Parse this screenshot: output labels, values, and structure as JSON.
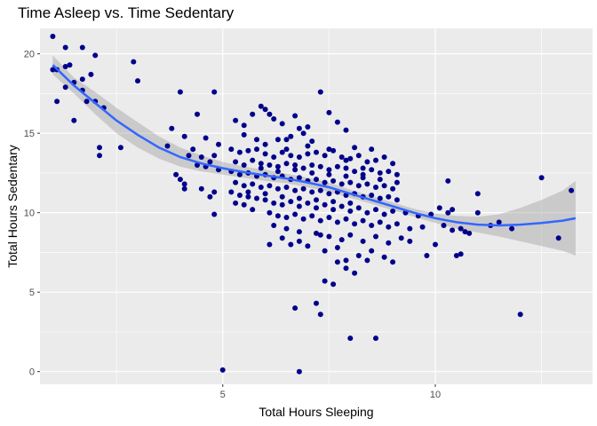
{
  "chart_data": {
    "type": "scatter",
    "title": "Time Asleep vs. Time Sedentary",
    "xlabel": "Total Hours Sleeping",
    "ylabel": "Total Hours Sedentary",
    "xlim": [
      0.7,
      13.7
    ],
    "ylim": [
      -0.8,
      21.6
    ],
    "xticks": [
      5,
      10
    ],
    "yticks": [
      0,
      5,
      10,
      15,
      20
    ],
    "grid": true,
    "legend": "none",
    "colors": {
      "panel": "#ebebeb",
      "grid": "#ffffff",
      "points": "#00008b",
      "smooth_line": "#3366ff",
      "ribbon": "#bfbfbf"
    },
    "smooth": {
      "method": "loess",
      "x": [
        1.0,
        1.5,
        2.0,
        2.5,
        3.0,
        3.5,
        4.0,
        4.5,
        5.0,
        5.5,
        6.0,
        6.5,
        7.0,
        7.5,
        8.0,
        8.5,
        9.0,
        9.5,
        10.0,
        10.5,
        11.0,
        11.5,
        12.0,
        12.5,
        13.0,
        13.3
      ],
      "y": [
        19.3,
        18.0,
        16.9,
        15.8,
        14.9,
        14.1,
        13.5,
        13.1,
        12.8,
        12.55,
        12.35,
        12.15,
        11.9,
        11.6,
        11.2,
        10.8,
        10.4,
        10.0,
        9.65,
        9.4,
        9.25,
        9.2,
        9.25,
        9.35,
        9.5,
        9.65
      ],
      "lower": [
        18.7,
        17.5,
        16.2,
        15.0,
        14.1,
        13.4,
        12.9,
        12.6,
        12.4,
        12.2,
        12.0,
        11.85,
        11.6,
        11.3,
        10.95,
        10.55,
        10.15,
        9.75,
        9.35,
        9.0,
        8.75,
        8.5,
        8.2,
        7.9,
        7.6,
        7.3
      ],
      "upper": [
        19.9,
        18.5,
        17.6,
        16.6,
        15.7,
        14.8,
        14.1,
        13.6,
        13.2,
        12.9,
        12.7,
        12.45,
        12.2,
        11.9,
        11.45,
        11.05,
        10.65,
        10.25,
        9.95,
        9.8,
        9.75,
        9.9,
        10.3,
        10.8,
        11.4,
        12.0
      ]
    },
    "points": [
      [
        1.0,
        21.1
      ],
      [
        1.3,
        20.4
      ],
      [
        1.7,
        20.4
      ],
      [
        2.0,
        19.9
      ],
      [
        1.1,
        19.0
      ],
      [
        1.4,
        19.3
      ],
      [
        1.3,
        19.2
      ],
      [
        1.0,
        19.0
      ],
      [
        1.5,
        18.2
      ],
      [
        1.7,
        18.4
      ],
      [
        1.9,
        18.7
      ],
      [
        1.7,
        17.7
      ],
      [
        1.3,
        17.9
      ],
      [
        1.1,
        17.0
      ],
      [
        1.8,
        17.0
      ],
      [
        2.0,
        17.0
      ],
      [
        2.2,
        16.6
      ],
      [
        1.5,
        15.8
      ],
      [
        2.1,
        14.1
      ],
      [
        2.1,
        13.6
      ],
      [
        2.6,
        14.1
      ],
      [
        2.9,
        19.5
      ],
      [
        3.0,
        18.3
      ],
      [
        4.0,
        17.6
      ],
      [
        4.8,
        17.6
      ],
      [
        4.4,
        16.2
      ],
      [
        3.8,
        15.3
      ],
      [
        4.1,
        14.8
      ],
      [
        4.6,
        14.7
      ],
      [
        4.9,
        14.3
      ],
      [
        3.7,
        14.2
      ],
      [
        4.3,
        14.0
      ],
      [
        4.2,
        13.6
      ],
      [
        4.5,
        13.5
      ],
      [
        4.8,
        13.6
      ],
      [
        4.7,
        13.2
      ],
      [
        4.4,
        13.0
      ],
      [
        4.6,
        12.9
      ],
      [
        4.9,
        12.7
      ],
      [
        3.9,
        12.4
      ],
      [
        4.0,
        12.1
      ],
      [
        4.1,
        11.8
      ],
      [
        4.1,
        11.5
      ],
      [
        4.5,
        11.5
      ],
      [
        4.8,
        11.3
      ],
      [
        4.7,
        11.0
      ],
      [
        4.8,
        9.9
      ],
      [
        5.0,
        0.1
      ],
      [
        5.3,
        15.8
      ],
      [
        5.5,
        15.5
      ],
      [
        5.7,
        16.2
      ],
      [
        5.9,
        16.7
      ],
      [
        6.0,
        16.5
      ],
      [
        6.1,
        16.2
      ],
      [
        6.2,
        15.9
      ],
      [
        5.5,
        14.9
      ],
      [
        5.8,
        14.6
      ],
      [
        6.0,
        14.3
      ],
      [
        6.3,
        14.6
      ],
      [
        6.5,
        14.6
      ],
      [
        6.6,
        14.8
      ],
      [
        6.8,
        15.3
      ],
      [
        7.0,
        15.4
      ],
      [
        6.9,
        15.0
      ],
      [
        7.1,
        14.5
      ],
      [
        7.3,
        17.6
      ],
      [
        7.5,
        16.3
      ],
      [
        7.7,
        15.7
      ],
      [
        7.9,
        15.2
      ],
      [
        6.7,
        16.1
      ],
      [
        6.4,
        15.6
      ],
      [
        5.2,
        14.0
      ],
      [
        5.4,
        13.8
      ],
      [
        5.6,
        13.9
      ],
      [
        5.8,
        14.0
      ],
      [
        6.0,
        13.7
      ],
      [
        6.2,
        13.5
      ],
      [
        6.4,
        13.8
      ],
      [
        6.6,
        13.6
      ],
      [
        6.8,
        13.5
      ],
      [
        7.0,
        13.7
      ],
      [
        7.2,
        13.8
      ],
      [
        7.4,
        13.6
      ],
      [
        7.6,
        13.9
      ],
      [
        7.8,
        13.5
      ],
      [
        8.0,
        13.4
      ],
      [
        8.2,
        13.6
      ],
      [
        8.4,
        13.2
      ],
      [
        8.6,
        13.3
      ],
      [
        8.8,
        13.5
      ],
      [
        9.0,
        13.1
      ],
      [
        5.3,
        13.2
      ],
      [
        5.5,
        13.0
      ],
      [
        5.7,
        13.3
      ],
      [
        5.9,
        13.1
      ],
      [
        6.1,
        13.0
      ],
      [
        6.3,
        12.9
      ],
      [
        6.5,
        13.1
      ],
      [
        6.7,
        13.0
      ],
      [
        6.9,
        12.8
      ],
      [
        7.1,
        13.0
      ],
      [
        7.3,
        12.9
      ],
      [
        7.5,
        12.7
      ],
      [
        7.7,
        12.9
      ],
      [
        7.9,
        12.8
      ],
      [
        8.1,
        12.6
      ],
      [
        8.3,
        12.8
      ],
      [
        8.5,
        12.7
      ],
      [
        8.7,
        12.5
      ],
      [
        8.9,
        12.6
      ],
      [
        9.1,
        12.4
      ],
      [
        5.2,
        12.6
      ],
      [
        5.4,
        12.4
      ],
      [
        5.6,
        12.5
      ],
      [
        5.8,
        12.3
      ],
      [
        6.0,
        12.4
      ],
      [
        6.2,
        12.2
      ],
      [
        6.4,
        12.3
      ],
      [
        6.6,
        12.1
      ],
      [
        6.8,
        12.2
      ],
      [
        7.0,
        12.0
      ],
      [
        7.2,
        12.1
      ],
      [
        7.4,
        11.9
      ],
      [
        7.6,
        12.0
      ],
      [
        7.8,
        11.8
      ],
      [
        8.0,
        11.9
      ],
      [
        8.2,
        11.7
      ],
      [
        8.4,
        11.8
      ],
      [
        8.6,
        11.6
      ],
      [
        8.8,
        11.7
      ],
      [
        9.0,
        11.5
      ],
      [
        5.3,
        11.9
      ],
      [
        5.5,
        11.7
      ],
      [
        5.7,
        11.8
      ],
      [
        5.9,
        11.6
      ],
      [
        6.1,
        11.7
      ],
      [
        6.3,
        11.5
      ],
      [
        6.5,
        11.6
      ],
      [
        6.7,
        11.4
      ],
      [
        6.9,
        11.5
      ],
      [
        7.1,
        11.3
      ],
      [
        7.3,
        11.4
      ],
      [
        7.5,
        11.2
      ],
      [
        7.7,
        11.3
      ],
      [
        7.9,
        11.1
      ],
      [
        8.1,
        11.2
      ],
      [
        8.3,
        11.0
      ],
      [
        8.5,
        11.1
      ],
      [
        8.7,
        10.9
      ],
      [
        8.9,
        11.0
      ],
      [
        9.1,
        10.8
      ],
      [
        5.2,
        11.3
      ],
      [
        5.4,
        11.1
      ],
      [
        5.6,
        11.0
      ],
      [
        5.8,
        10.9
      ],
      [
        6.0,
        10.8
      ],
      [
        6.2,
        10.6
      ],
      [
        6.4,
        10.5
      ],
      [
        6.6,
        10.7
      ],
      [
        6.8,
        10.4
      ],
      [
        7.0,
        10.6
      ],
      [
        7.2,
        10.3
      ],
      [
        7.4,
        10.5
      ],
      [
        7.6,
        10.2
      ],
      [
        7.8,
        10.4
      ],
      [
        8.0,
        10.1
      ],
      [
        8.2,
        10.3
      ],
      [
        8.4,
        10.0
      ],
      [
        8.6,
        10.2
      ],
      [
        8.8,
        9.9
      ],
      [
        9.0,
        10.1
      ],
      [
        9.3,
        10.0
      ],
      [
        9.6,
        9.8
      ],
      [
        9.9,
        9.9
      ],
      [
        10.1,
        10.3
      ],
      [
        10.3,
        10.0
      ],
      [
        5.3,
        10.6
      ],
      [
        5.5,
        10.5
      ],
      [
        5.7,
        10.2
      ],
      [
        6.1,
        10.0
      ],
      [
        6.3,
        9.8
      ],
      [
        6.5,
        9.7
      ],
      [
        6.7,
        9.9
      ],
      [
        6.9,
        9.6
      ],
      [
        7.1,
        9.8
      ],
      [
        7.3,
        9.5
      ],
      [
        7.5,
        9.7
      ],
      [
        7.7,
        9.4
      ],
      [
        7.9,
        9.6
      ],
      [
        8.1,
        9.3
      ],
      [
        8.3,
        9.5
      ],
      [
        8.5,
        9.2
      ],
      [
        8.7,
        9.4
      ],
      [
        8.9,
        9.1
      ],
      [
        9.1,
        9.3
      ],
      [
        9.4,
        9.0
      ],
      [
        9.7,
        9.1
      ],
      [
        10.2,
        9.2
      ],
      [
        10.4,
        8.9
      ],
      [
        10.7,
        8.8
      ],
      [
        6.2,
        9.2
      ],
      [
        6.5,
        9.0
      ],
      [
        6.8,
        8.8
      ],
      [
        7.2,
        8.7
      ],
      [
        7.5,
        8.5
      ],
      [
        7.8,
        8.3
      ],
      [
        8.0,
        8.6
      ],
      [
        8.3,
        8.2
      ],
      [
        8.6,
        8.5
      ],
      [
        8.9,
        8.1
      ],
      [
        9.2,
        8.4
      ],
      [
        6.4,
        8.4
      ],
      [
        6.6,
        8.0
      ],
      [
        7.0,
        7.9
      ],
      [
        7.4,
        7.6
      ],
      [
        7.7,
        7.8
      ],
      [
        7.9,
        7.0
      ],
      [
        8.2,
        7.3
      ],
      [
        8.5,
        7.6
      ],
      [
        8.8,
        7.2
      ],
      [
        9.0,
        6.9
      ],
      [
        9.4,
        8.2
      ],
      [
        9.8,
        7.3
      ],
      [
        10.0,
        8.0
      ],
      [
        6.1,
        8.0
      ],
      [
        6.8,
        8.2
      ],
      [
        7.3,
        8.6
      ],
      [
        7.9,
        6.5
      ],
      [
        8.1,
        6.2
      ],
      [
        8.4,
        7.0
      ],
      [
        7.7,
        6.9
      ],
      [
        7.4,
        5.7
      ],
      [
        7.6,
        5.5
      ],
      [
        6.7,
        4.0
      ],
      [
        7.2,
        4.3
      ],
      [
        7.3,
        3.6
      ],
      [
        8.0,
        2.1
      ],
      [
        8.6,
        2.1
      ],
      [
        6.8,
        0.0
      ],
      [
        10.3,
        12.0
      ],
      [
        10.4,
        10.2
      ],
      [
        11.0,
        11.2
      ],
      [
        11.0,
        10.0
      ],
      [
        11.5,
        9.4
      ],
      [
        10.6,
        9.0
      ],
      [
        10.8,
        8.7
      ],
      [
        10.5,
        7.3
      ],
      [
        10.6,
        7.4
      ],
      [
        11.8,
        9.0
      ],
      [
        12.0,
        3.6
      ],
      [
        12.5,
        12.2
      ],
      [
        13.2,
        11.4
      ],
      [
        12.9,
        8.4
      ],
      [
        11.3,
        9.2
      ],
      [
        5.6,
        11.3
      ],
      [
        6.0,
        11.2
      ],
      [
        6.4,
        11.0
      ],
      [
        6.8,
        10.9
      ],
      [
        7.2,
        10.8
      ],
      [
        7.6,
        10.7
      ],
      [
        8.0,
        10.6
      ],
      [
        5.9,
        12.8
      ],
      [
        6.3,
        12.6
      ],
      [
        6.7,
        12.7
      ],
      [
        7.1,
        12.5
      ],
      [
        7.5,
        12.4
      ],
      [
        7.9,
        12.3
      ],
      [
        8.3,
        12.2
      ],
      [
        8.7,
        12.1
      ],
      [
        9.1,
        11.9
      ],
      [
        6.5,
        14.0
      ],
      [
        7.0,
        14.2
      ],
      [
        7.5,
        14.0
      ],
      [
        8.1,
        14.1
      ],
      [
        8.5,
        14.0
      ],
      [
        7.9,
        13.3
      ],
      [
        8.3,
        12.4
      ]
    ]
  }
}
